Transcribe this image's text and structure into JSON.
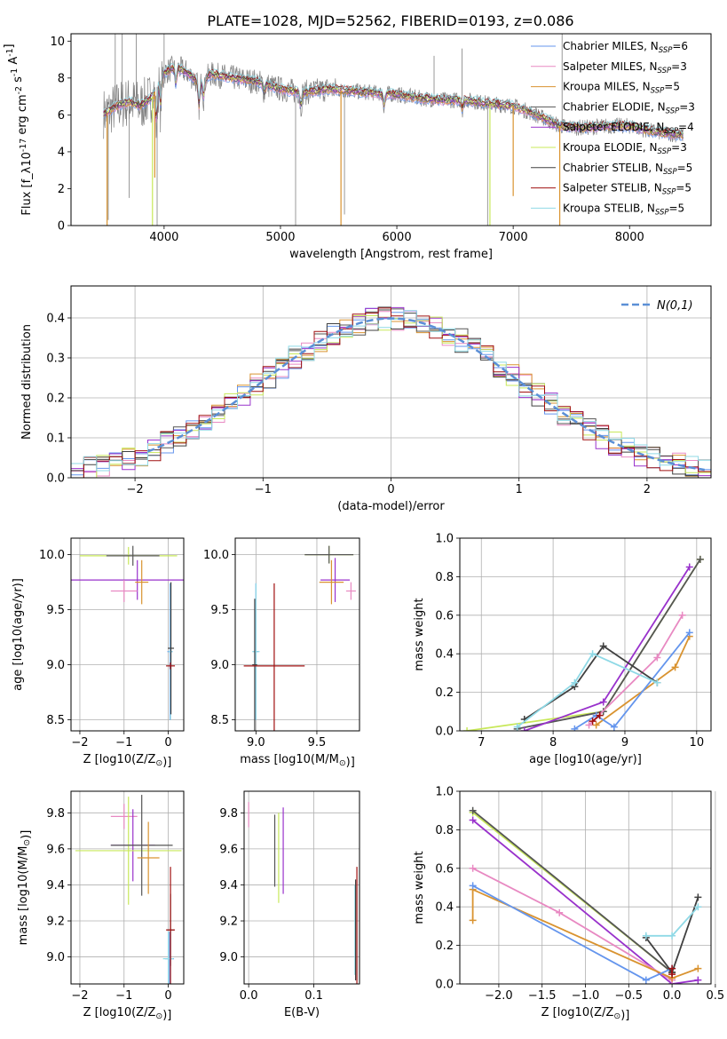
{
  "figure": {
    "title": "PLATE=1028, MJD=52562, FIBERID=0193, z=0.086"
  },
  "colors": {
    "C_MILES": "#6495ed",
    "S_MILES": "#e889c2",
    "K_MILES": "#d99330",
    "C_ELODIE": "#555555",
    "S_ELODIE": "#9932cc",
    "K_ELODIE": "#c8e85a",
    "C_STELIB": "#404040",
    "S_STELIB": "#a01010",
    "K_STELIB": "#8fd9e6",
    "gauss": "#5b8fd6",
    "data": "#808080"
  },
  "chart_data": [
    {
      "id": "spectrum",
      "type": "line",
      "title": "PLATE=1028, MJD=52562, FIBERID=0193, z=0.086",
      "xlabel": "wavelength [Angstrom, rest frame]",
      "ylabel": "Flux [f_λ10^-17 erg cm^-2 s^-1 A^-1]",
      "xlim": [
        3200,
        8700
      ],
      "ylim": [
        0,
        10.4
      ],
      "xticks": [
        4000,
        5000,
        6000,
        7000,
        8000
      ],
      "yticks": [
        0,
        2,
        4,
        6,
        8,
        10
      ],
      "legend_position": "right",
      "legend": [
        {
          "label": "Chabrier MILES, N_SSP=6",
          "key": "C_MILES"
        },
        {
          "label": "Salpeter MILES, N_SSP=3",
          "key": "S_MILES"
        },
        {
          "label": "Kroupa MILES, N_SSP=5",
          "key": "K_MILES"
        },
        {
          "label": "Chabrier ELODIE, N_SSP=3",
          "key": "C_ELODIE"
        },
        {
          "label": "Salpeter ELODIE, N_SSP=4",
          "key": "S_ELODIE"
        },
        {
          "label": "Kroupa ELODIE, N_SSP=3",
          "key": "K_ELODIE"
        },
        {
          "label": "Chabrier STELIB, N_SSP=5",
          "key": "C_STELIB"
        },
        {
          "label": "Salpeter STELIB, N_SSP=5",
          "key": "S_STELIB"
        },
        {
          "label": "Kroupa STELIB, N_SSP=5",
          "key": "K_STELIB"
        }
      ],
      "continuum": {
        "x": [
          3500,
          3600,
          3700,
          3800,
          3900,
          4000,
          4100,
          4200,
          4300,
          4400,
          4600,
          4800,
          5000,
          5200,
          5400,
          5600,
          5800,
          6000,
          6200,
          6400,
          6600,
          6800,
          7000,
          7200,
          7400,
          7600,
          7800,
          8000,
          8200,
          8450
        ],
        "y": [
          6.1,
          6.5,
          6.7,
          6.5,
          7.0,
          8.3,
          8.6,
          8.3,
          7.7,
          8.2,
          8.0,
          7.8,
          7.4,
          7.2,
          7.4,
          7.3,
          7.2,
          7.1,
          6.9,
          6.8,
          6.8,
          6.6,
          6.5,
          6.0,
          5.4,
          5.3,
          5.4,
          5.4,
          5.1,
          4.9
        ]
      },
      "absorption_lines": [
        {
          "x": 3934,
          "depth": 2.0
        },
        {
          "x": 3969,
          "depth": 1.5
        },
        {
          "x": 4102,
          "depth": 1.0
        },
        {
          "x": 4300,
          "depth": 1.3
        },
        {
          "x": 4340,
          "depth": 1.0
        },
        {
          "x": 4861,
          "depth": 0.5
        },
        {
          "x": 5175,
          "depth": 0.8
        },
        {
          "x": 5890,
          "depth": 0.7
        },
        {
          "x": 6563,
          "depth": 0.5
        }
      ],
      "data_spikes": [
        {
          "x": 3520,
          "y": 0.3
        },
        {
          "x": 3580,
          "y": 10.4
        },
        {
          "x": 3640,
          "y": 10.4
        },
        {
          "x": 3700,
          "y": 1.5
        },
        {
          "x": 3760,
          "y": 10.4
        },
        {
          "x": 3940,
          "y": 0.0
        },
        {
          "x": 4000,
          "y": 10.4
        },
        {
          "x": 5130,
          "y": 0.0
        },
        {
          "x": 5550,
          "y": 0.6
        },
        {
          "x": 6320,
          "y": 9.2
        },
        {
          "x": 6560,
          "y": 9.6
        },
        {
          "x": 6780,
          "y": 0.0
        },
        {
          "x": 7420,
          "y": 10.4
        }
      ],
      "model_spikes": [
        {
          "x": 3510,
          "y": 0.0,
          "key": "K_MILES"
        },
        {
          "x": 3920,
          "y": 2.6,
          "key": "K_MILES"
        },
        {
          "x": 5520,
          "y": 0.0,
          "key": "K_MILES"
        },
        {
          "x": 7000,
          "y": 1.6,
          "key": "K_MILES"
        },
        {
          "x": 7400,
          "y": 0.0,
          "key": "K_MILES"
        },
        {
          "x": 3900,
          "y": 0.0,
          "key": "K_ELODIE"
        },
        {
          "x": 6800,
          "y": 0.0,
          "key": "K_ELODIE"
        }
      ]
    },
    {
      "id": "residuals",
      "type": "histogram",
      "xlabel": "(data-model)/error",
      "ylabel": "Normed distribution",
      "xlim": [
        -2.5,
        2.5
      ],
      "ylim": [
        0,
        0.48
      ],
      "xticks": [
        -2,
        -1,
        0,
        1,
        2
      ],
      "yticks": [
        0.0,
        0.1,
        0.2,
        0.3,
        0.4
      ],
      "legend_position": "top-right",
      "gauss_label": "N(0,1)",
      "bin_width": 0.1
    },
    {
      "id": "age_vs_Z",
      "type": "scatter",
      "xlabel": "Z [log10(Z/Z_sun)]",
      "ylabel": "age [log10(age/yr)]",
      "xlim": [
        -2.2,
        0.35
      ],
      "ylim": [
        8.4,
        10.15
      ],
      "xticks": [
        -2,
        -1,
        0
      ],
      "yticks": [
        8.5,
        9.0,
        9.5,
        10.0
      ],
      "points": [
        {
          "key": "K_ELODIE",
          "x": -0.9,
          "xerr": 1.1,
          "y": 9.99,
          "yerr": 0.08
        },
        {
          "key": "C_ELODIE",
          "x": -0.8,
          "xerr": 0.6,
          "y": 9.99,
          "yerr": 0.09
        },
        {
          "key": "S_ELODIE",
          "x": -0.7,
          "xerr": 1.5,
          "y": 9.77,
          "yerr": 0.18
        },
        {
          "key": "S_MILES",
          "x": -1.0,
          "xerr": 0.3,
          "y": 9.67,
          "yerr": 0.1
        },
        {
          "key": "K_MILES",
          "x": -0.6,
          "xerr": 0.15,
          "y": 9.75,
          "yerr": 0.2
        },
        {
          "key": "C_MILES",
          "x": 0.04,
          "xerr": 0.06,
          "y": 9.12,
          "yerr": 0.62
        },
        {
          "key": "K_STELIB",
          "x": 0.05,
          "xerr": 0.05,
          "y": 9.12,
          "yerr": 0.62
        },
        {
          "key": "C_STELIB",
          "x": 0.06,
          "xerr": 0.07,
          "y": 9.15,
          "yerr": 0.6
        },
        {
          "key": "S_STELIB",
          "x": 0.05,
          "xerr": 0.1,
          "y": 8.99,
          "yerr": 0.03
        }
      ]
    },
    {
      "id": "age_vs_mass",
      "type": "scatter",
      "xlabel": "mass [log10(M/M_sun)]",
      "ylabel": "",
      "xlim": [
        8.83,
        9.85
      ],
      "ylim": [
        8.4,
        10.15
      ],
      "xticks": [
        9.0,
        9.5
      ],
      "yticks": [
        8.5,
        9.0,
        9.5,
        10.0
      ],
      "points": [
        {
          "key": "K_ELODIE",
          "x": 9.6,
          "xerr": 0.2,
          "y": 10.0,
          "yerr": 0.08
        },
        {
          "key": "C_ELODIE",
          "x": 9.6,
          "xerr": 0.2,
          "y": 10.0,
          "yerr": 0.08
        },
        {
          "key": "S_ELODIE",
          "x": 9.65,
          "xerr": 0.12,
          "y": 9.77,
          "yerr": 0.2
        },
        {
          "key": "K_MILES",
          "x": 9.62,
          "xerr": 0.1,
          "y": 9.75,
          "yerr": 0.2
        },
        {
          "key": "S_MILES",
          "x": 9.78,
          "xerr": 0.04,
          "y": 9.67,
          "yerr": 0.08
        },
        {
          "key": "C_MILES",
          "x": 9.0,
          "xerr": 0.02,
          "y": 9.12,
          "yerr": 0.62
        },
        {
          "key": "K_STELIB",
          "x": 9.0,
          "xerr": 0.03,
          "y": 9.12,
          "yerr": 0.62
        },
        {
          "key": "C_STELIB",
          "x": 8.99,
          "xerr": 0.02,
          "y": 9.0,
          "yerr": 0.6
        },
        {
          "key": "S_STELIB",
          "x": 9.15,
          "xerr": 0.25,
          "y": 8.99,
          "yerr": 0.75
        }
      ]
    },
    {
      "id": "weight_vs_age",
      "type": "line",
      "xlabel": "age [log10(age/yr)]",
      "ylabel": "mass weight",
      "xlim": [
        6.7,
        10.2
      ],
      "ylim": [
        0,
        1.0
      ],
      "xticks": [
        7,
        8,
        9,
        10
      ],
      "yticks": [
        0.0,
        0.2,
        0.4,
        0.6,
        0.8,
        1.0
      ],
      "series": [
        {
          "key": "K_ELODIE",
          "x": [
            6.8,
            8.7,
            10.05
          ],
          "y": [
            0.0,
            0.1,
            0.89
          ]
        },
        {
          "key": "C_ELODIE",
          "x": [
            7.5,
            8.7,
            10.05
          ],
          "y": [
            0.01,
            0.1,
            0.89
          ]
        },
        {
          "key": "S_ELODIE",
          "x": [
            7.6,
            8.7,
            9.9
          ],
          "y": [
            0.0,
            0.15,
            0.85
          ]
        },
        {
          "key": "S_MILES",
          "x": [
            8.5,
            9.45,
            9.8
          ],
          "y": [
            0.03,
            0.38,
            0.6
          ]
        },
        {
          "key": "K_MILES",
          "x": [
            8.6,
            9.7,
            9.9
          ],
          "y": [
            0.03,
            0.33,
            0.49
          ]
        },
        {
          "key": "C_MILES",
          "x": [
            8.3,
            8.6,
            8.85,
            9.9
          ],
          "y": [
            0.01,
            0.08,
            0.02,
            0.51
          ]
        },
        {
          "key": "C_STELIB",
          "x": [
            7.6,
            8.3,
            8.7,
            9.45
          ],
          "y": [
            0.06,
            0.23,
            0.44,
            0.25
          ]
        },
        {
          "key": "K_STELIB",
          "x": [
            7.5,
            8.3,
            8.55,
            9.45
          ],
          "y": [
            0.02,
            0.25,
            0.4,
            0.25
          ]
        },
        {
          "key": "S_STELIB",
          "x": [
            8.55,
            8.65
          ],
          "y": [
            0.05,
            0.08
          ]
        }
      ]
    },
    {
      "id": "mass_vs_Z",
      "type": "scatter",
      "xlabel": "Z [log10(Z/Z_sun)]",
      "ylabel": "mass [log10(M/M_sun)]",
      "xlim": [
        -2.2,
        0.35
      ],
      "ylim": [
        8.85,
        9.92
      ],
      "xticks": [
        -2,
        -1,
        0
      ],
      "yticks": [
        9.0,
        9.2,
        9.4,
        9.6,
        9.8
      ],
      "points": [
        {
          "key": "S_MILES",
          "x": -1.0,
          "xerr": 0.3,
          "y": 9.78,
          "yerr": 0.07
        },
        {
          "key": "S_ELODIE",
          "x": -0.8,
          "xerr": 0.5,
          "y": 9.62,
          "yerr": 0.2
        },
        {
          "key": "K_ELODIE",
          "x": -0.9,
          "xerr": 1.2,
          "y": 9.59,
          "yerr": 0.3
        },
        {
          "key": "C_ELODIE",
          "x": -0.6,
          "xerr": 0.7,
          "y": 9.62,
          "yerr": 0.28
        },
        {
          "key": "K_MILES",
          "x": -0.45,
          "xerr": 0.25,
          "y": 9.55,
          "yerr": 0.2
        },
        {
          "key": "C_MILES",
          "x": 0.03,
          "xerr": 0.1,
          "y": 8.99,
          "yerr": 0.15
        },
        {
          "key": "K_STELIB",
          "x": 0.0,
          "xerr": 0.12,
          "y": 8.99,
          "yerr": 0.15
        },
        {
          "key": "C_STELIB",
          "x": 0.05,
          "xerr": 0.08,
          "y": 9.15,
          "yerr": 0.2
        },
        {
          "key": "S_STELIB",
          "x": 0.05,
          "xerr": 0.1,
          "y": 9.15,
          "yerr": 0.35
        }
      ]
    },
    {
      "id": "mass_vs_EBV",
      "type": "scatter",
      "xlabel": "E(B-V)",
      "ylabel": "",
      "xlim": [
        -0.007,
        0.17
      ],
      "ylim": [
        8.85,
        9.92
      ],
      "xticks": [
        0.0,
        0.1
      ],
      "yticks": [
        9.0,
        9.2,
        9.4,
        9.6,
        9.8
      ],
      "points": [
        {
          "key": "S_MILES",
          "x": 0.0,
          "xerr": 0.0,
          "y": 9.79,
          "yerr": 0.07
        },
        {
          "key": "C_ELODIE",
          "x": 0.04,
          "xerr": 0.0,
          "y": 9.59,
          "yerr": 0.2
        },
        {
          "key": "K_ELODIE",
          "x": 0.046,
          "xerr": 0.0,
          "y": 9.55,
          "yerr": 0.25
        },
        {
          "key": "S_ELODIE",
          "x": 0.053,
          "xerr": 0.0,
          "y": 9.59,
          "yerr": 0.24
        },
        {
          "key": "K_STELIB",
          "x": 0.163,
          "xerr": 0.0,
          "y": 9.15,
          "yerr": 0.25
        },
        {
          "key": "S_STELIB",
          "x": 0.166,
          "xerr": 0.0,
          "y": 9.15,
          "yerr": 0.35
        },
        {
          "key": "C_STELIB",
          "x": 0.164,
          "xerr": 0.0,
          "y": 9.15,
          "yerr": 0.28
        }
      ]
    },
    {
      "id": "weight_vs_Z",
      "type": "line",
      "xlabel": "Z [log10(Z/Z_sun)]",
      "ylabel": "mass weight",
      "xlim": [
        -2.45,
        0.45
      ],
      "ylim": [
        0,
        1.0
      ],
      "xticks": [
        -2.0,
        -1.5,
        -1.0,
        -0.5,
        0.0,
        0.5
      ],
      "yticks": [
        0.0,
        0.2,
        0.4,
        0.6,
        0.8,
        1.0
      ],
      "series": [
        {
          "key": "K_ELODIE",
          "x": [
            -2.3,
            0.0
          ],
          "y": [
            0.89,
            0.06
          ]
        },
        {
          "key": "C_ELODIE",
          "x": [
            -2.3,
            0.0
          ],
          "y": [
            0.9,
            0.06
          ]
        },
        {
          "key": "S_ELODIE",
          "x": [
            -2.3,
            0.0,
            0.3
          ],
          "y": [
            0.85,
            0.0,
            0.02
          ]
        },
        {
          "key": "S_MILES",
          "x": [
            -2.3,
            -1.3,
            0.0
          ],
          "y": [
            0.6,
            0.37,
            0.02
          ]
        },
        {
          "key": "K_MILES",
          "x": [
            -2.3,
            -2.3,
            0.0,
            0.3
          ],
          "y": [
            0.33,
            0.49,
            0.03,
            0.08
          ]
        },
        {
          "key": "C_MILES",
          "x": [
            -2.3,
            -0.3,
            0.0
          ],
          "y": [
            0.51,
            0.02,
            0.08
          ]
        },
        {
          "key": "C_STELIB",
          "x": [
            -0.3,
            0.0,
            0.3
          ],
          "y": [
            0.24,
            0.06,
            0.45
          ]
        },
        {
          "key": "K_STELIB",
          "x": [
            -0.3,
            0.0,
            0.3
          ],
          "y": [
            0.25,
            0.25,
            0.4
          ]
        },
        {
          "key": "S_STELIB",
          "x": [
            0.0,
            0.0
          ],
          "y": [
            0.05,
            0.08
          ]
        }
      ]
    }
  ]
}
